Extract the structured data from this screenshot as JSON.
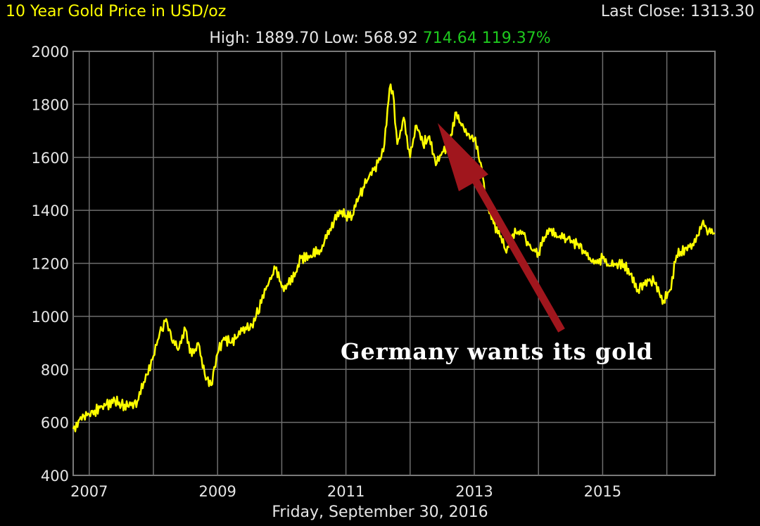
{
  "header": {
    "title": "10 Year Gold Price in USD/oz",
    "last_close": "Last Close: 1313.30",
    "high_low": "High: 1889.70 Low: 568.92",
    "change": "714.64 119.37%"
  },
  "footer_date": "Friday, September 30, 2016",
  "annotation": "Germany wants its gold",
  "colors": {
    "line": "#ffff00",
    "grid": "#6e6e6e",
    "arrow": "#a0161d",
    "change": "#1ec81e"
  },
  "chart_data": {
    "type": "line",
    "title": "10 Year Gold Price in USD/oz",
    "xlabel": "Friday, September 30, 2016",
    "ylabel": "",
    "ylim": [
      400,
      2000
    ],
    "xlim": [
      2006.75,
      2016.75
    ],
    "y_ticks": [
      400,
      600,
      800,
      1000,
      1200,
      1400,
      1600,
      1800,
      2000
    ],
    "x_ticks": [
      2007,
      2009,
      2011,
      2013,
      2015
    ],
    "grid": true,
    "series": [
      {
        "x": [
          2006.75,
          2006.9,
          2007.0,
          2007.2,
          2007.4,
          2007.6,
          2007.75,
          2007.9,
          2008.0,
          2008.1,
          2008.2,
          2008.3,
          2008.4,
          2008.5,
          2008.6,
          2008.7,
          2008.8,
          2008.9,
          2009.0,
          2009.1,
          2009.2,
          2009.3,
          2009.4,
          2009.5,
          2009.6,
          2009.75,
          2009.9,
          2010.0,
          2010.1,
          2010.2,
          2010.3,
          2010.45,
          2010.6,
          2010.75,
          2010.9,
          2011.0,
          2011.1,
          2011.2,
          2011.35,
          2011.5,
          2011.6,
          2011.68,
          2011.73,
          2011.8,
          2011.9,
          2012.0,
          2012.1,
          2012.2,
          2012.3,
          2012.4,
          2012.5,
          2012.6,
          2012.72,
          2012.8,
          2012.9,
          2013.0,
          2013.1,
          2013.2,
          2013.3,
          2013.4,
          2013.5,
          2013.6,
          2013.75,
          2013.9,
          2014.0,
          2014.1,
          2014.2,
          2014.3,
          2014.45,
          2014.6,
          2014.75,
          2014.9,
          2015.0,
          2015.1,
          2015.25,
          2015.4,
          2015.55,
          2015.7,
          2015.8,
          2015.95,
          2016.05,
          2016.15,
          2016.3,
          2016.45,
          2016.55,
          2016.65,
          2016.75
        ],
        "y": [
          575,
          630,
          630,
          660,
          680,
          660,
          680,
          780,
          850,
          940,
          990,
          900,
          880,
          950,
          850,
          900,
          780,
          740,
          860,
          920,
          900,
          920,
          960,
          950,
          1000,
          1100,
          1180,
          1110,
          1120,
          1150,
          1220,
          1230,
          1250,
          1330,
          1400,
          1380,
          1380,
          1450,
          1520,
          1580,
          1650,
          1860,
          1850,
          1650,
          1750,
          1600,
          1720,
          1650,
          1680,
          1570,
          1620,
          1640,
          1770,
          1720,
          1690,
          1670,
          1580,
          1420,
          1350,
          1300,
          1240,
          1310,
          1320,
          1250,
          1240,
          1300,
          1330,
          1300,
          1290,
          1270,
          1230,
          1200,
          1220,
          1190,
          1200,
          1180,
          1100,
          1140,
          1130,
          1060,
          1100,
          1230,
          1260,
          1280,
          1350,
          1320,
          1313
        ]
      }
    ]
  }
}
